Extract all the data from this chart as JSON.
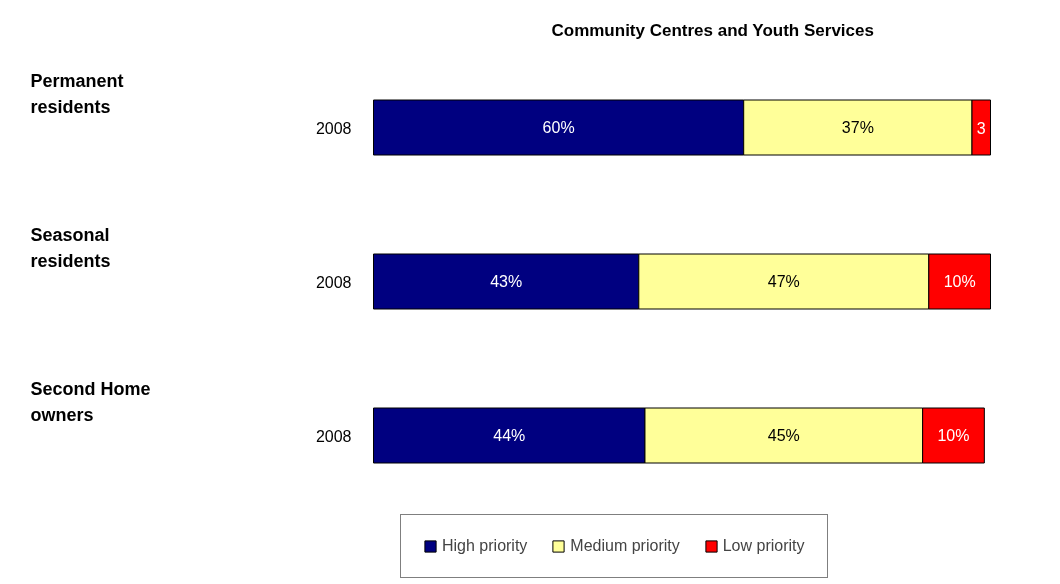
{
  "chart_data": {
    "type": "bar",
    "orientation": "horizontal",
    "stacked": true,
    "title": "Community Centres and Youth Services",
    "categories": [
      "2008",
      "2008",
      "2008"
    ],
    "annotations": [
      "Permanent residents",
      "Seasonal residents",
      "Second Home owners"
    ],
    "xlim": [
      0,
      100
    ],
    "series": [
      {
        "name": "High priority",
        "color": "#000080",
        "values": [
          60,
          43,
          44
        ],
        "value_labels": [
          "60%",
          "43%",
          "44%"
        ]
      },
      {
        "name": "Medium priority",
        "color": "#ffff99",
        "values": [
          37,
          47,
          45
        ],
        "value_labels": [
          "37%",
          "47%",
          "45%"
        ]
      },
      {
        "name": "Low priority",
        "color": "#ff0000",
        "values": [
          3,
          10,
          10
        ],
        "value_labels": [
          "3",
          "10%",
          "10%"
        ]
      }
    ],
    "legend": "bottom",
    "grid": false
  }
}
